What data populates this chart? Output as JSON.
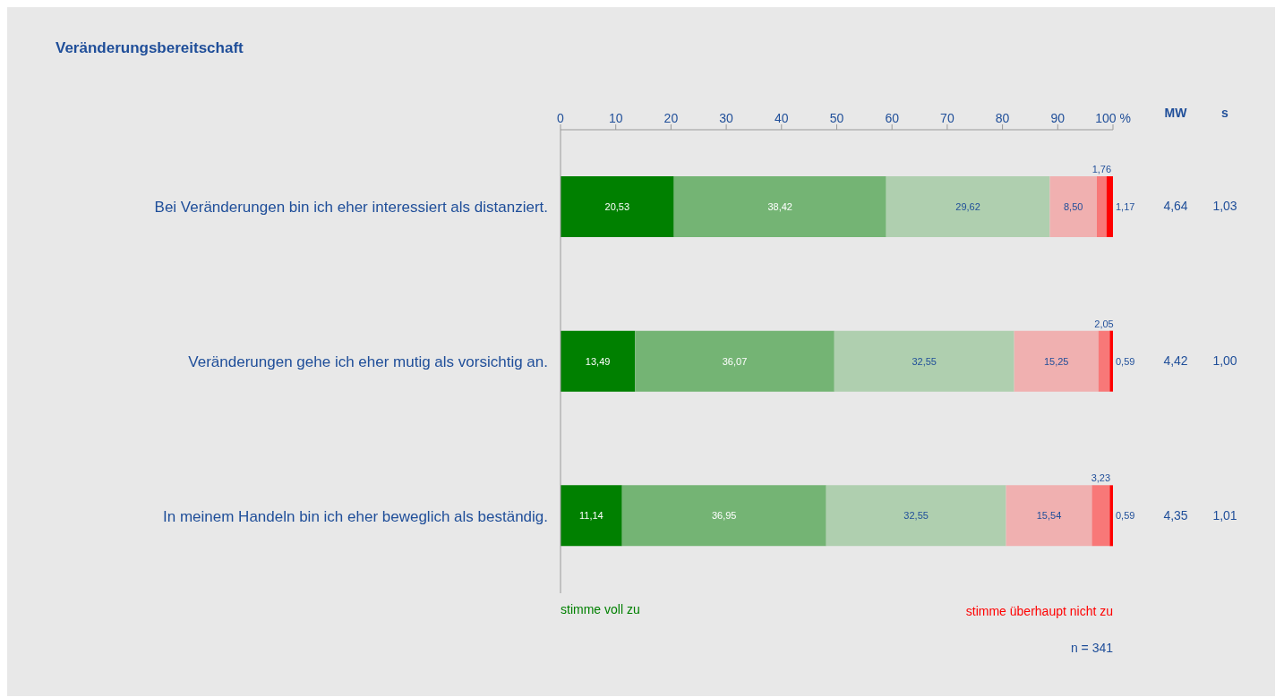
{
  "chart_data": {
    "type": "bar",
    "orientation": "horizontal",
    "stacked": true,
    "title": "Veränderungsbereitschaft",
    "categories": [
      "Bei Veränderungen bin ich eher interessiert als distanziert.",
      "Veränderungen gehe ich eher mutig als vorsichtig an.",
      "In meinem Handeln bin ich eher beweglich als beständig."
    ],
    "series": [
      {
        "color": "#008000",
        "values": [
          20.53,
          13.49,
          11.14
        ],
        "value_labels": [
          "20,53",
          "13,49",
          "11,14"
        ]
      },
      {
        "color": "#74b474",
        "values": [
          38.42,
          36.07,
          36.95
        ],
        "value_labels": [
          "38,42",
          "36,07",
          "36,95"
        ]
      },
      {
        "color": "#afcfaf",
        "values": [
          29.62,
          32.55,
          32.55
        ],
        "value_labels": [
          "29,62",
          "32,55",
          "32,55"
        ]
      },
      {
        "color": "#f0b0b0",
        "values": [
          8.5,
          15.25,
          15.54
        ],
        "value_labels": [
          "8,50",
          "15,25",
          "15,54"
        ]
      },
      {
        "color": "#f87878",
        "values": [
          1.76,
          2.05,
          3.23
        ],
        "value_labels": [
          "1,76",
          "2,05",
          "3,23"
        ]
      },
      {
        "color": "#ff0000",
        "values": [
          1.17,
          0.59,
          0.59
        ],
        "value_labels": [
          "1,17",
          "0,59",
          "0,59"
        ]
      }
    ],
    "xlim": [
      0,
      100
    ],
    "xticks": [
      0,
      10,
      20,
      30,
      40,
      50,
      60,
      70,
      80,
      90,
      {
        "value": 100,
        "label": "100 %"
      }
    ],
    "grid": false,
    "legend": false,
    "annotations": [
      "MW",
      "s",
      "4,64",
      "1,03",
      "4,42",
      "1,00",
      "4,35",
      "1,01",
      "stimme voll zu",
      "stimme überhaupt nicht zu",
      "n = 341"
    ]
  }
}
